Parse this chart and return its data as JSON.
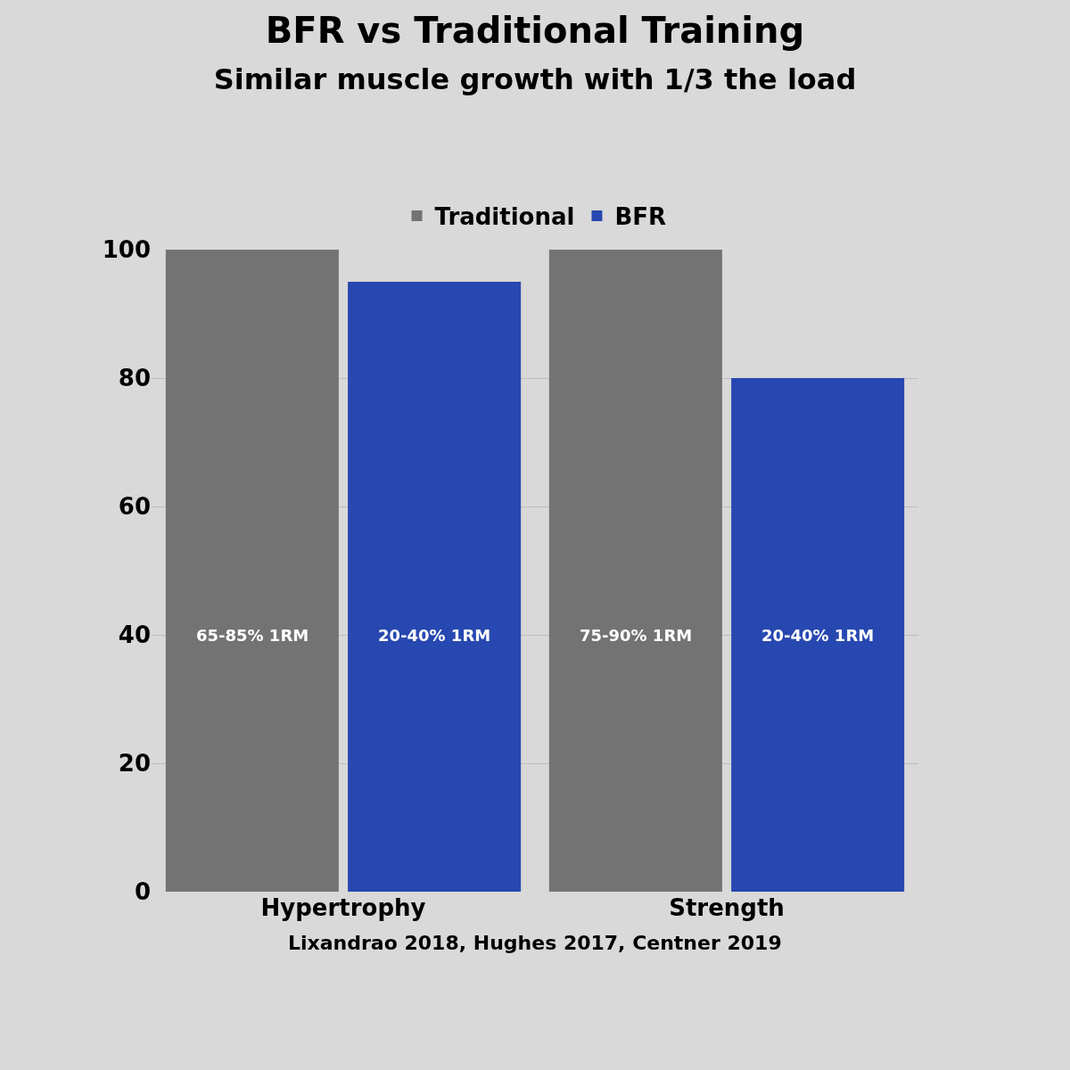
{
  "chart_data": {
    "type": "bar",
    "title": "BFR vs Traditional Training",
    "subtitle": "Similar muscle growth with 1/3 the load",
    "categories": [
      "Hypertrophy",
      "Strength"
    ],
    "series": [
      {
        "name": "Traditional",
        "color": "#737373",
        "values": [
          100,
          100
        ]
      },
      {
        "name": "BFR",
        "color": "#2748b0",
        "values": [
          95,
          80
        ]
      }
    ],
    "ylim": [
      0,
      100
    ],
    "yticks": [
      0,
      20,
      40,
      60,
      80,
      100
    ],
    "grid": "y",
    "legend": "top",
    "annotations": [
      "65-85% 1RM",
      "20-40% 1RM",
      "75-90% 1RM",
      "20-40% 1RM",
      "Lixandrao 2018, Hughes 2017, Centner 2019"
    ]
  }
}
